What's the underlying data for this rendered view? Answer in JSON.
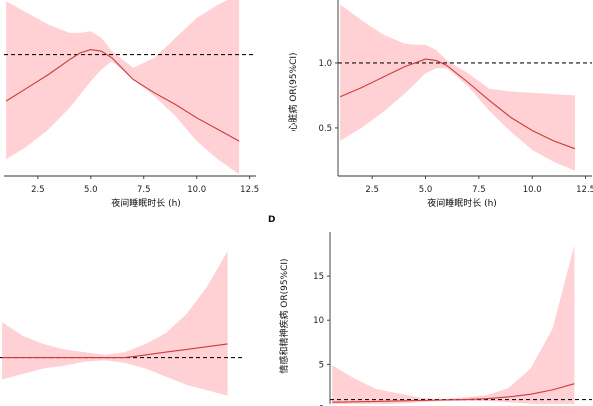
{
  "chart_data": [
    {
      "id": "A",
      "type": "line",
      "xlabel": "夜间睡眠时长 (h)",
      "ylabel": "",
      "x_ticks": [
        2.5,
        5.0,
        7.5,
        10.0,
        12.5
      ],
      "x_tick_labels": [
        "2.5",
        "5.0",
        "7.5",
        "10.0",
        "12.5"
      ],
      "y_ticks": [],
      "y_tick_labels": [],
      "xlim": [
        0.9,
        12.8
      ],
      "ylim": [
        0.27,
        1.34
      ],
      "reference_line": 1.0,
      "colors": {
        "curve": "#cc3b3b",
        "band": "#ffc9cd",
        "reference": "#111111"
      },
      "series": [
        {
          "x": [
            1,
            2,
            3,
            4,
            4.5,
            5,
            5.5,
            6,
            7,
            8,
            9,
            10,
            11,
            12
          ],
          "y": [
            0.72,
            0.8,
            0.88,
            0.97,
            1.01,
            1.03,
            1.02,
            0.98,
            0.85,
            0.77,
            0.7,
            0.62,
            0.55,
            0.48
          ],
          "lower": [
            0.37,
            0.45,
            0.55,
            0.68,
            0.76,
            0.84,
            0.91,
            0.96,
            0.85,
            0.75,
            0.63,
            0.48,
            0.37,
            0.28
          ],
          "upper": [
            1.32,
            1.25,
            1.18,
            1.13,
            1.13,
            1.14,
            1.1,
            1.02,
            0.92,
            0.98,
            1.1,
            1.22,
            1.3,
            1.36
          ]
        }
      ]
    },
    {
      "id": "B",
      "type": "line",
      "xlabel": "夜间睡眠时长 (h)",
      "ylabel": "心脏病 OR(95%CI)",
      "x_ticks": [
        2.5,
        5.0,
        7.5,
        10.0,
        12.5
      ],
      "x_tick_labels": [
        "2.5",
        "5.0",
        "7.5",
        "10.0",
        "12.5"
      ],
      "y_ticks": [
        0.5,
        1.0
      ],
      "y_tick_labels": [
        "0.5",
        "1.0"
      ],
      "xlim": [
        0.9,
        12.8
      ],
      "ylim": [
        0.13,
        1.5
      ],
      "reference_line": 1.0,
      "colors": {
        "curve": "#cc3b3b",
        "band": "#ffc9cd",
        "reference": "#111111"
      },
      "series": [
        {
          "x": [
            1,
            2,
            3,
            4,
            4.5,
            5,
            5.5,
            6,
            7,
            8,
            9,
            10,
            11,
            12
          ],
          "y": [
            0.74,
            0.81,
            0.89,
            0.97,
            1.0,
            1.03,
            1.02,
            0.98,
            0.85,
            0.71,
            0.58,
            0.48,
            0.4,
            0.34
          ],
          "lower": [
            0.4,
            0.5,
            0.62,
            0.76,
            0.84,
            0.92,
            0.96,
            0.96,
            0.82,
            0.63,
            0.47,
            0.33,
            0.24,
            0.17
          ],
          "upper": [
            1.45,
            1.33,
            1.22,
            1.15,
            1.14,
            1.14,
            1.1,
            1.02,
            0.92,
            0.8,
            0.78,
            0.77,
            0.76,
            0.75
          ]
        }
      ]
    },
    {
      "id": "C",
      "type": "line",
      "xlabel": "",
      "ylabel": "",
      "x_ticks": [],
      "x_tick_labels": [],
      "y_ticks": [],
      "y_tick_labels": [],
      "xlim": [
        0.9,
        12.8
      ],
      "ylim": [
        0.83,
        1.46
      ],
      "reference_line": 1.0,
      "colors": {
        "curve": "#cc3b3b",
        "band": "#ffc9cd",
        "reference": "#111111"
      },
      "series": [
        {
          "x": [
            1,
            2,
            3,
            4,
            5,
            6,
            7,
            8,
            9,
            10,
            11,
            12
          ],
          "y": [
            1.0,
            1.0,
            1.0,
            1.0,
            1.0,
            1.0,
            1.0,
            1.01,
            1.02,
            1.03,
            1.04,
            1.05
          ],
          "lower": [
            0.92,
            0.94,
            0.96,
            0.97,
            0.985,
            0.99,
            0.98,
            0.96,
            0.93,
            0.9,
            0.88,
            0.86
          ],
          "upper": [
            1.13,
            1.08,
            1.05,
            1.03,
            1.02,
            1.01,
            1.02,
            1.05,
            1.09,
            1.16,
            1.26,
            1.39
          ]
        }
      ]
    },
    {
      "id": "D",
      "type": "line",
      "xlabel": "",
      "ylabel": "情感和精神疾病 OR(95%CI)",
      "x_ticks": [],
      "x_tick_labels": [],
      "y_ticks": [
        0,
        5,
        10,
        15
      ],
      "y_tick_labels": [
        "0",
        "5",
        "10",
        "15"
      ],
      "xlim": [
        0.9,
        12.8
      ],
      "ylim": [
        0.5,
        20
      ],
      "reference_line": 1.0,
      "colors": {
        "curve": "#cc3b3b",
        "band": "#ffc9cd",
        "reference": "#111111"
      },
      "series": [
        {
          "x": [
            1,
            2,
            3,
            4,
            5,
            6,
            7,
            8,
            9,
            10,
            11,
            12
          ],
          "y": [
            0.7,
            0.75,
            0.8,
            0.85,
            0.9,
            0.95,
            1.0,
            1.1,
            1.3,
            1.6,
            2.1,
            2.8
          ],
          "lower": [
            0.3,
            0.35,
            0.45,
            0.55,
            0.7,
            0.85,
            0.85,
            0.85,
            0.7,
            0.55,
            0.4,
            0.3
          ],
          "upper": [
            4.9,
            3.4,
            2.2,
            1.7,
            1.2,
            1.05,
            1.25,
            1.5,
            2.3,
            4.5,
            9.0,
            18.5
          ]
        }
      ]
    }
  ],
  "panel_labels": {
    "D": "D"
  }
}
